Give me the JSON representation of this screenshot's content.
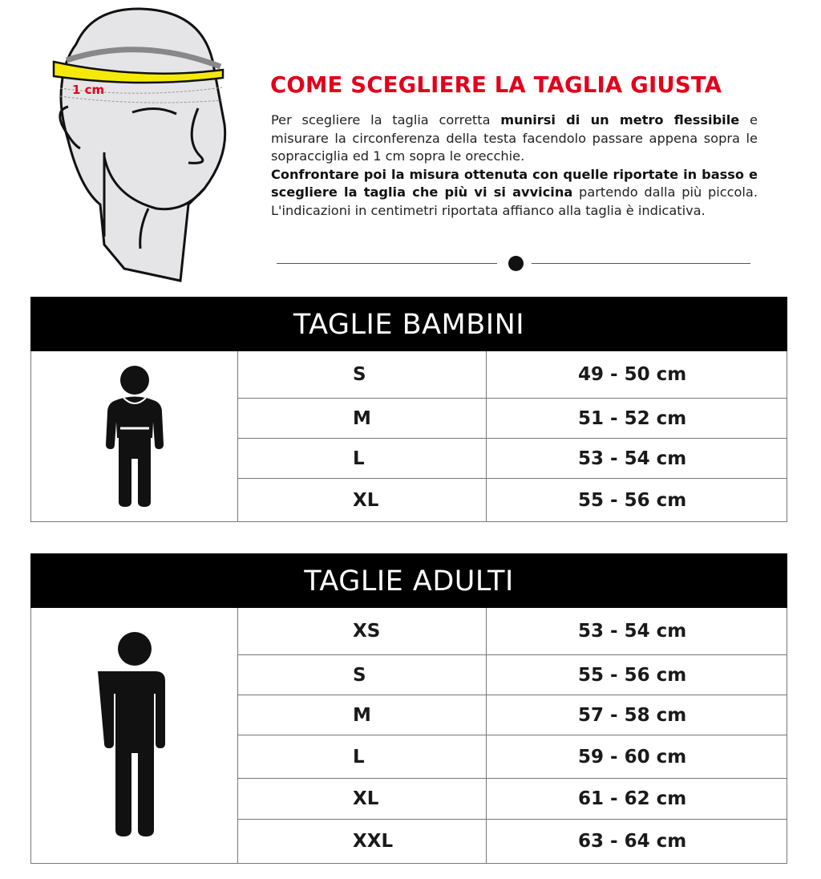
{
  "illustration": {
    "measure_label": "1 cm",
    "tape_color": "#f5e90a",
    "label_color": "#e3001b"
  },
  "header": {
    "title": "COME SCEGLIERE LA TAGLIA GIUSTA",
    "title_color": "#e3001b"
  },
  "instructions": {
    "p1_a": "Per scegliere la taglia corretta ",
    "p1_b": "munirsi di un metro flessibile",
    "p1_c": " e misurare la circonferenza della testa facendolo passare appena sopra le sopracciglia ed 1 cm sopra le orecchie.",
    "p2_a": "Confrontare poi la misura ottenuta con quelle riportate in basso e scegliere la taglia che più vi si avvicina",
    "p2_b": " partendo dalla più piccola. L'indicazioni in centimetri riportata affianco alla taglia è indicativa."
  },
  "kids": {
    "title": "TAGLIE BAMBINI",
    "icon": "child-silhouette-icon",
    "rows": [
      {
        "size": "S",
        "range": "49 - 50 cm"
      },
      {
        "size": "M",
        "range": "51 - 52 cm"
      },
      {
        "size": "L",
        "range": "53 - 54 cm"
      },
      {
        "size": "XL",
        "range": "55 - 56 cm"
      }
    ]
  },
  "adults": {
    "title": "TAGLIE ADULTI",
    "icon": "adult-silhouette-icon",
    "rows": [
      {
        "size": "XS",
        "range": "53 - 54 cm"
      },
      {
        "size": "S",
        "range": "55 - 56 cm"
      },
      {
        "size": "M",
        "range": "57 - 58 cm"
      },
      {
        "size": "L",
        "range": "59 - 60 cm"
      },
      {
        "size": "XL",
        "range": "61 - 62 cm"
      },
      {
        "size": "XXL",
        "range": "63 - 64 cm"
      }
    ]
  }
}
